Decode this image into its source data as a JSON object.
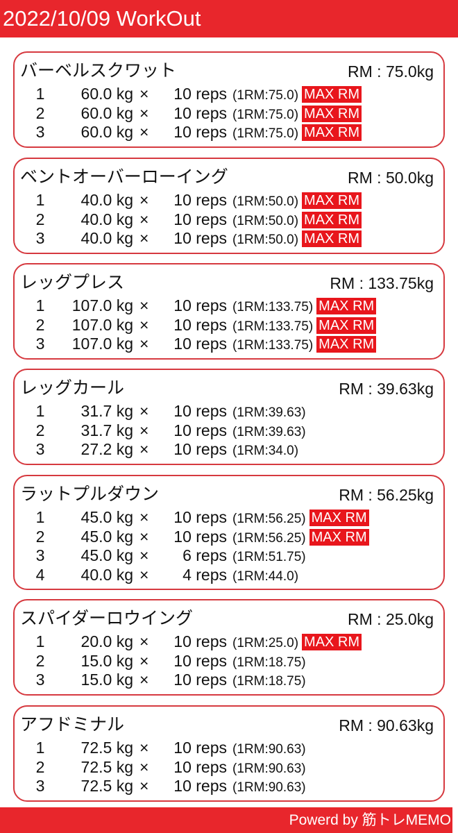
{
  "header": {
    "title": "2022/10/09 WorkOut"
  },
  "footer": {
    "text": "Powerd by 筋トレMEMO"
  },
  "colors": {
    "accent": "#e8262c",
    "badge": "#e8161c",
    "border": "#d6393f"
  },
  "exercises": [
    {
      "name": "バーベルスクワット",
      "rm": "RM : 75.0kg",
      "sets": [
        {
          "n": "1",
          "weight": "60.0 kg",
          "reps": "10 reps",
          "one_rm": "(1RM:75.0)",
          "badge": "MAX RM"
        },
        {
          "n": "2",
          "weight": "60.0 kg",
          "reps": "10 reps",
          "one_rm": "(1RM:75.0)",
          "badge": "MAX RM"
        },
        {
          "n": "3",
          "weight": "60.0 kg",
          "reps": "10 reps",
          "one_rm": "(1RM:75.0)",
          "badge": "MAX RM"
        }
      ]
    },
    {
      "name": "ベントオーバーローイング",
      "rm": "RM : 50.0kg",
      "sets": [
        {
          "n": "1",
          "weight": "40.0 kg",
          "reps": "10 reps",
          "one_rm": "(1RM:50.0)",
          "badge": "MAX RM"
        },
        {
          "n": "2",
          "weight": "40.0 kg",
          "reps": "10 reps",
          "one_rm": "(1RM:50.0)",
          "badge": "MAX RM"
        },
        {
          "n": "3",
          "weight": "40.0 kg",
          "reps": "10 reps",
          "one_rm": "(1RM:50.0)",
          "badge": "MAX RM"
        }
      ]
    },
    {
      "name": "レッグプレス",
      "rm": "RM : 133.75kg",
      "sets": [
        {
          "n": "1",
          "weight": "107.0 kg",
          "reps": "10 reps",
          "one_rm": "(1RM:133.75)",
          "badge": "MAX RM"
        },
        {
          "n": "2",
          "weight": "107.0 kg",
          "reps": "10 reps",
          "one_rm": "(1RM:133.75)",
          "badge": "MAX RM"
        },
        {
          "n": "3",
          "weight": "107.0 kg",
          "reps": "10 reps",
          "one_rm": "(1RM:133.75)",
          "badge": "MAX RM"
        }
      ]
    },
    {
      "name": "レッグカール",
      "rm": "RM : 39.63kg",
      "sets": [
        {
          "n": "1",
          "weight": "31.7 kg",
          "reps": "10 reps",
          "one_rm": "(1RM:39.63)",
          "badge": ""
        },
        {
          "n": "2",
          "weight": "31.7 kg",
          "reps": "10 reps",
          "one_rm": "(1RM:39.63)",
          "badge": ""
        },
        {
          "n": "3",
          "weight": "27.2 kg",
          "reps": "10 reps",
          "one_rm": "(1RM:34.0)",
          "badge": ""
        }
      ]
    },
    {
      "name": "ラットプルダウン",
      "rm": "RM : 56.25kg",
      "sets": [
        {
          "n": "1",
          "weight": "45.0 kg",
          "reps": "10 reps",
          "one_rm": "(1RM:56.25)",
          "badge": "MAX RM"
        },
        {
          "n": "2",
          "weight": "45.0 kg",
          "reps": "10 reps",
          "one_rm": "(1RM:56.25)",
          "badge": "MAX RM"
        },
        {
          "n": "3",
          "weight": "45.0 kg",
          "reps": "6 reps",
          "one_rm": "(1RM:51.75)",
          "badge": ""
        },
        {
          "n": "4",
          "weight": "40.0 kg",
          "reps": "4 reps",
          "one_rm": "(1RM:44.0)",
          "badge": ""
        }
      ]
    },
    {
      "name": "スパイダーロウイング",
      "rm": "RM : 25.0kg",
      "sets": [
        {
          "n": "1",
          "weight": "20.0 kg",
          "reps": "10 reps",
          "one_rm": "(1RM:25.0)",
          "badge": "MAX RM"
        },
        {
          "n": "2",
          "weight": "15.0 kg",
          "reps": "10 reps",
          "one_rm": "(1RM:18.75)",
          "badge": ""
        },
        {
          "n": "3",
          "weight": "15.0 kg",
          "reps": "10 reps",
          "one_rm": "(1RM:18.75)",
          "badge": ""
        }
      ]
    },
    {
      "name": "アフドミナル",
      "rm": "RM : 90.63kg",
      "sets": [
        {
          "n": "1",
          "weight": "72.5 kg",
          "reps": "10 reps",
          "one_rm": "(1RM:90.63)",
          "badge": ""
        },
        {
          "n": "2",
          "weight": "72.5 kg",
          "reps": "10 reps",
          "one_rm": "(1RM:90.63)",
          "badge": ""
        },
        {
          "n": "3",
          "weight": "72.5 kg",
          "reps": "10 reps",
          "one_rm": "(1RM:90.63)",
          "badge": ""
        }
      ]
    }
  ],
  "times_symbol": "×"
}
